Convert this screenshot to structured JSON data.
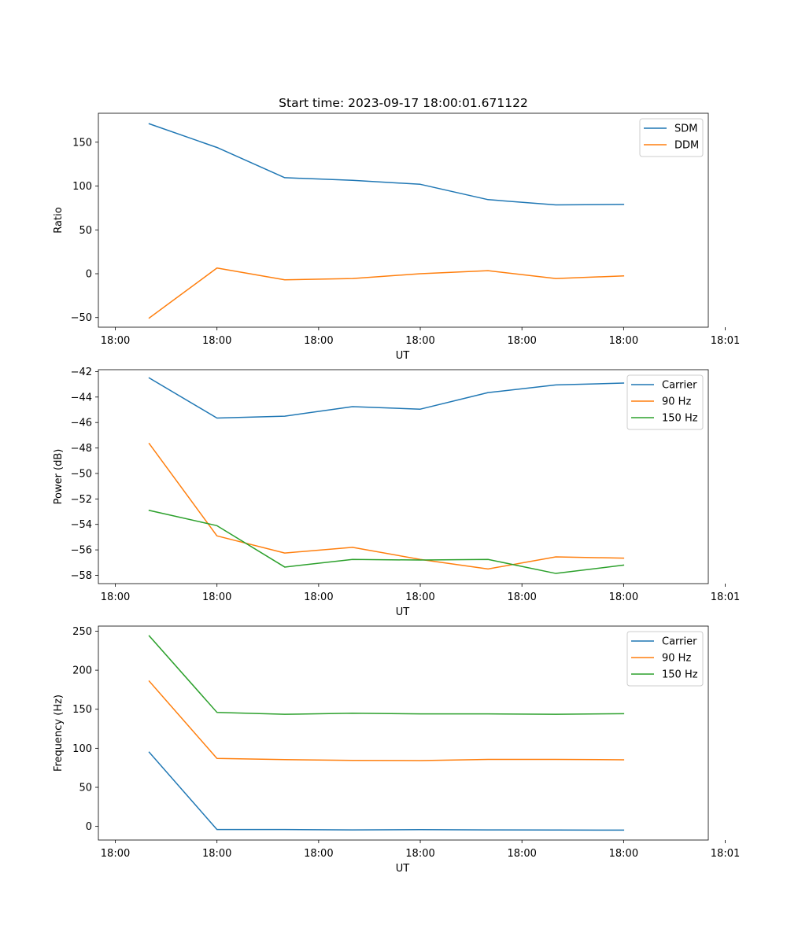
{
  "title": "Start time: 2023-09-17 18:00:01.671122",
  "colors": {
    "blue": "#1f77b4",
    "orange": "#ff7f0e",
    "green": "#2ca02c"
  },
  "chart_data": [
    {
      "type": "line",
      "title": "Start time: 2023-09-17 18:00:01.671122",
      "xlabel": "UT",
      "ylabel": "Ratio",
      "x": [
        1,
        2,
        3,
        4,
        5,
        6,
        7,
        8
      ],
      "xlim": [
        0.25,
        9.25
      ],
      "ylim": [
        -61,
        183
      ],
      "xticks": [
        0.5,
        2,
        3.5,
        5,
        6.5,
        8,
        9.5
      ],
      "xtick_labels": [
        "18:00",
        "18:00",
        "18:00",
        "18:00",
        "18:00",
        "18:00",
        "18:01"
      ],
      "yticks": [
        -50,
        0,
        50,
        100,
        150
      ],
      "ytick_labels": [
        "−50",
        "0",
        "50",
        "100",
        "150"
      ],
      "legend_position": "top-right",
      "series": [
        {
          "name": "SDM",
          "color": "#1f77b4",
          "values": [
            171,
            144,
            109.5,
            106.5,
            102,
            84.5,
            78.5,
            79
          ]
        },
        {
          "name": "DDM",
          "color": "#ff7f0e",
          "values": [
            -50.5,
            6.5,
            -7,
            -5.5,
            0,
            3.5,
            -5.5,
            -2.5
          ]
        }
      ]
    },
    {
      "type": "line",
      "xlabel": "UT",
      "ylabel": "Power (dB)",
      "x": [
        1,
        2,
        3,
        4,
        5,
        6,
        7,
        8
      ],
      "xlim": [
        0.25,
        9.25
      ],
      "ylim": [
        -58.65,
        -41.85
      ],
      "xticks": [
        0.5,
        2,
        3.5,
        5,
        6.5,
        8,
        9.5
      ],
      "xtick_labels": [
        "18:00",
        "18:00",
        "18:00",
        "18:00",
        "18:00",
        "18:00",
        "18:01"
      ],
      "yticks": [
        -58,
        -56,
        -54,
        -52,
        -50,
        -48,
        -46,
        -44,
        -42
      ],
      "ytick_labels": [
        "−58",
        "−56",
        "−54",
        "−52",
        "−50",
        "−48",
        "−46",
        "−44",
        "−42"
      ],
      "legend_position": "top-right",
      "series": [
        {
          "name": "Carrier",
          "color": "#1f77b4",
          "values": [
            -42.5,
            -45.65,
            -45.5,
            -44.75,
            -44.95,
            -43.65,
            -43.05,
            -42.9
          ]
        },
        {
          "name": "90 Hz",
          "color": "#ff7f0e",
          "values": [
            -47.65,
            -54.9,
            -56.25,
            -55.8,
            -56.75,
            -57.5,
            -56.55,
            -56.65
          ]
        },
        {
          "name": "150 Hz",
          "color": "#2ca02c",
          "values": [
            -52.9,
            -54.1,
            -57.35,
            -56.75,
            -56.8,
            -56.75,
            -57.85,
            -57.2
          ]
        }
      ]
    },
    {
      "type": "line",
      "xlabel": "UT",
      "ylabel": "Frequency (Hz)",
      "x": [
        1,
        2,
        3,
        4,
        5,
        6,
        7,
        8
      ],
      "xlim": [
        0.25,
        9.25
      ],
      "ylim": [
        -17.5,
        256.5
      ],
      "xticks": [
        0.5,
        2,
        3.5,
        5,
        6.5,
        8,
        9.5
      ],
      "xtick_labels": [
        "18:00",
        "18:00",
        "18:00",
        "18:00",
        "18:00",
        "18:00",
        "18:01"
      ],
      "yticks": [
        0,
        50,
        100,
        150,
        200,
        250
      ],
      "ytick_labels": [
        "0",
        "50",
        "100",
        "150",
        "200",
        "250"
      ],
      "legend_position": "top-right",
      "series": [
        {
          "name": "Carrier",
          "color": "#1f77b4",
          "values": [
            95,
            -4,
            -4,
            -4.5,
            -4.2,
            -4.5,
            -4.7,
            -4.8
          ]
        },
        {
          "name": "90 Hz",
          "color": "#ff7f0e",
          "values": [
            186,
            87,
            85.5,
            84.5,
            84.3,
            85.8,
            85.8,
            85.3
          ]
        },
        {
          "name": "150 Hz",
          "color": "#2ca02c",
          "values": [
            244,
            146,
            143.5,
            145,
            144,
            144,
            143.5,
            144.3
          ]
        }
      ]
    }
  ]
}
